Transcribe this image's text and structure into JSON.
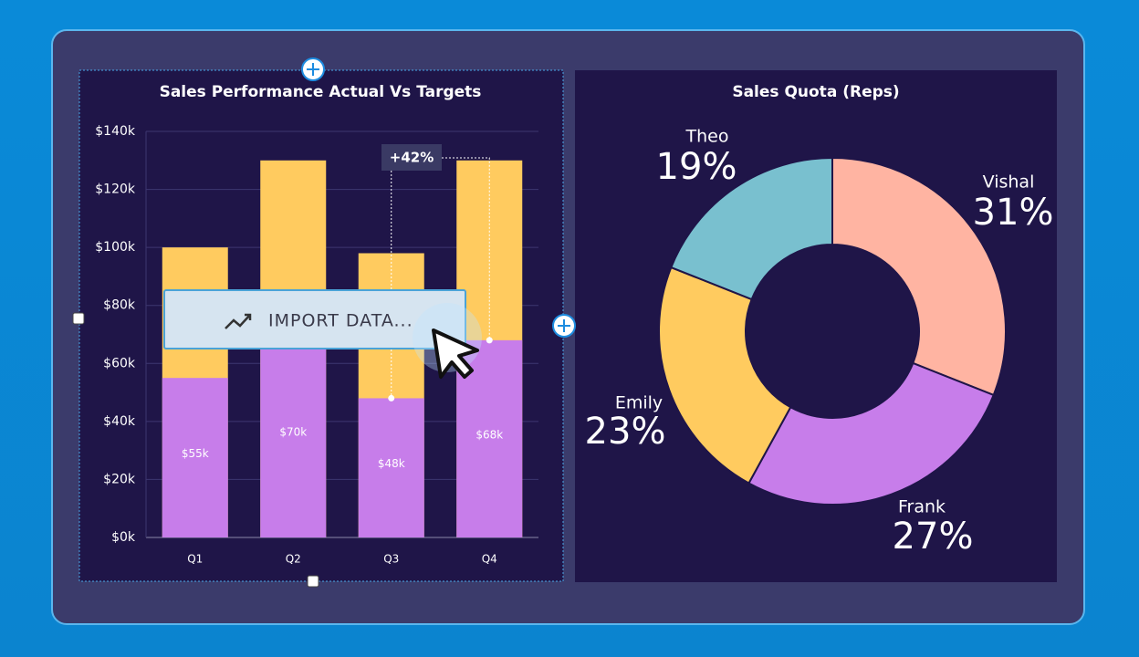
{
  "chart_data": [
    {
      "type": "bar",
      "title": "Sales Performance Actual Vs Targets",
      "categories": [
        "Q1",
        "Q2",
        "Q3",
        "Q4"
      ],
      "series": [
        {
          "color": "#c77dea",
          "values": [
            55000,
            70000,
            48000,
            68000
          ],
          "value_labels": [
            "$55k",
            "$70k",
            "$48k",
            "$68k"
          ]
        },
        {
          "color": "#ffcb5f",
          "values": [
            100000,
            130000,
            98000,
            130000
          ]
        }
      ],
      "ylim": [
        0,
        140000
      ],
      "yticks": [
        {
          "value": 0,
          "label": "$0k"
        },
        {
          "value": 20000,
          "label": "$20k"
        },
        {
          "value": 40000,
          "label": "$40k"
        },
        {
          "value": 60000,
          "label": "$60k"
        },
        {
          "value": 80000,
          "label": "$80k"
        },
        {
          "value": 100000,
          "label": "$100k"
        },
        {
          "value": 120000,
          "label": "$120k"
        },
        {
          "value": 140000,
          "label": "$140k"
        }
      ],
      "grid": true,
      "annotation": "+42%"
    },
    {
      "type": "donut",
      "title": "Sales Quota (Reps)",
      "categories": [
        "Vishal",
        "Frank",
        "Emily",
        "Theo"
      ],
      "values": [
        31,
        27,
        23,
        19
      ],
      "value_labels": [
        "31%",
        "27%",
        "23%",
        "19%"
      ],
      "colors": [
        "#ffb4a2",
        "#c77dea",
        "#ffcb5f",
        "#79c0cf"
      ]
    }
  ],
  "ui": {
    "import_button": "IMPORT DATA..."
  }
}
